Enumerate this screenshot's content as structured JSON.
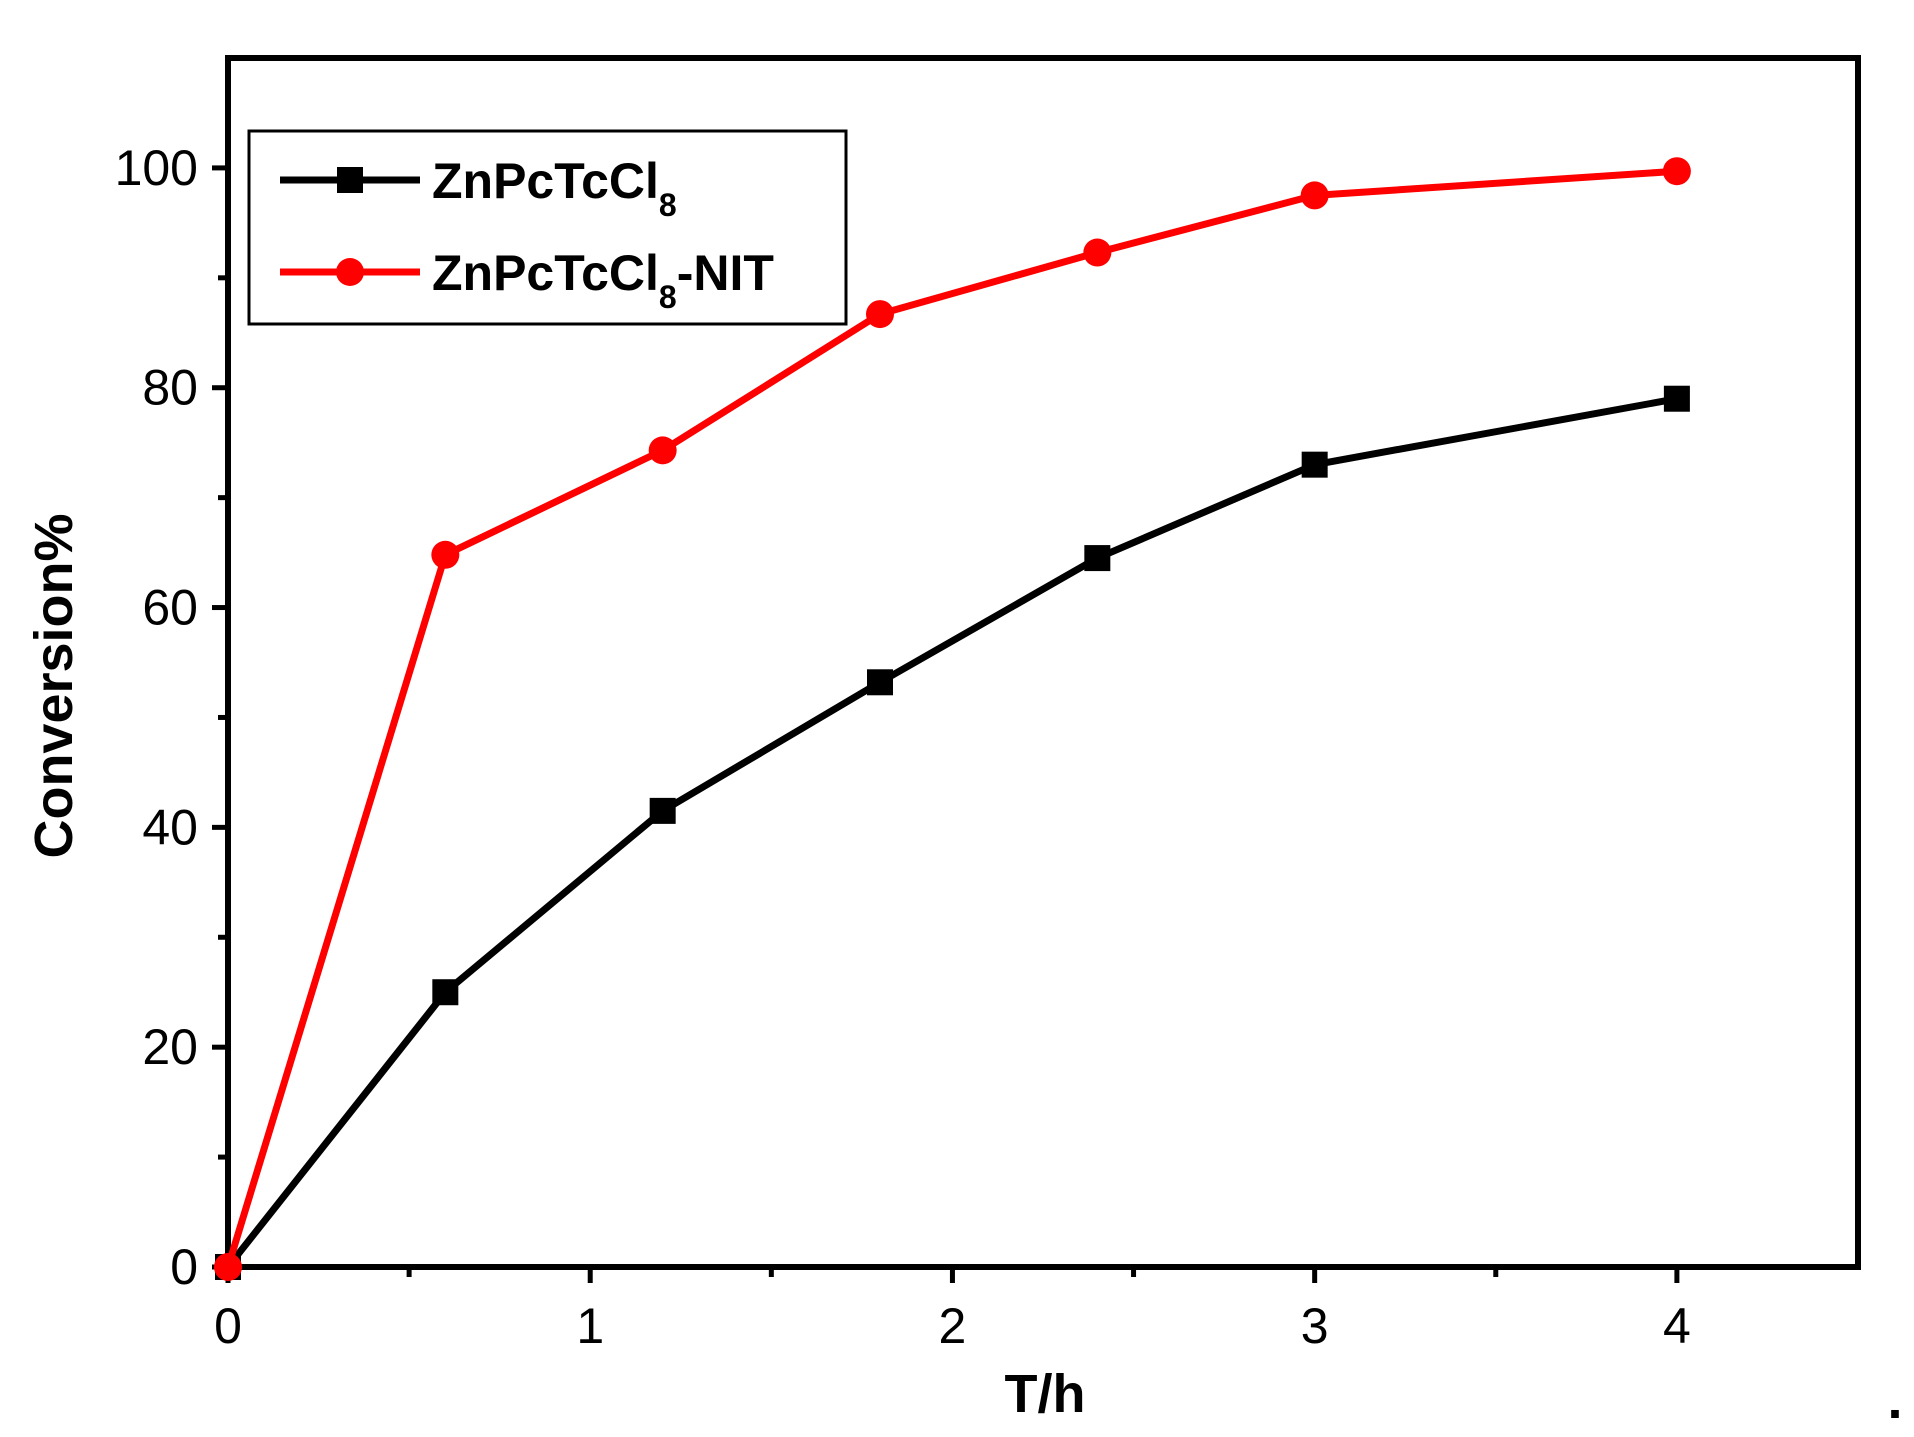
{
  "chart_data": {
    "type": "line",
    "title": "",
    "xlabel": "T/h",
    "ylabel": "Conversion%",
    "xlim": [
      0,
      4.5
    ],
    "ylim": [
      0,
      110
    ],
    "xticks": [
      0,
      1,
      2,
      3,
      4
    ],
    "xtick_labels": [
      "0",
      "1",
      "2",
      "3",
      "4"
    ],
    "yticks": [
      0,
      20,
      40,
      60,
      80,
      100
    ],
    "ytick_labels": [
      "0",
      "20",
      "40",
      "60",
      "80",
      "100"
    ],
    "legend_position": "top-left",
    "series": [
      {
        "name": "ZnPcTcCl8",
        "legend_main": "ZnPcTcCl",
        "legend_sub": "8",
        "legend_suffix": "",
        "color": "#000000",
        "marker": "square",
        "x": [
          0,
          0.6,
          1.2,
          1.8,
          2.4,
          3.0,
          4.0
        ],
        "values": [
          0,
          25,
          41.5,
          53.2,
          64.5,
          73,
          79
        ]
      },
      {
        "name": "ZnPcTcCl8-NIT",
        "legend_main": "ZnPcTcCl",
        "legend_sub": "8",
        "legend_suffix": "-NIT",
        "color": "#ff0000",
        "marker": "circle",
        "x": [
          0,
          0.6,
          1.2,
          1.8,
          2.4,
          3.0,
          4.0
        ],
        "values": [
          0,
          64.8,
          74.3,
          86.7,
          92.3,
          97.5,
          99.7
        ]
      }
    ],
    "trailing_mark": "."
  }
}
